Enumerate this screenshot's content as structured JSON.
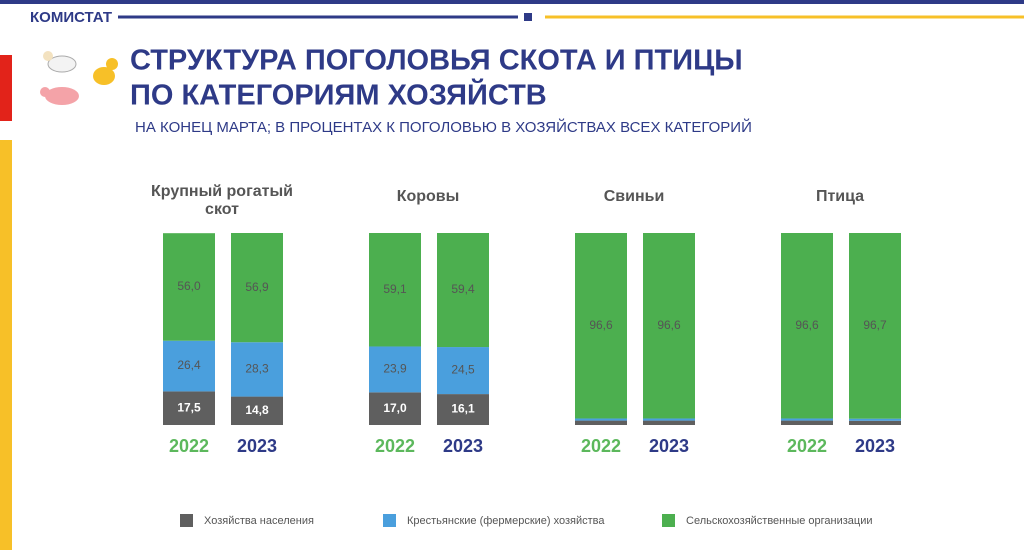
{
  "header": {
    "brand": "КОМИСТАТ"
  },
  "chart_data": {
    "type": "stacked_bar",
    "title": [
      "СТРУКТУРА ПОГОЛОВЬЯ СКОТА И ПТИЦЫ",
      "ПО КАТЕГОРИЯМ ХОЗЯЙСТВ"
    ],
    "subtitle": "НА КОНЕЦ МАРТА;  В ПРОЦЕНТАХ  К ПОГОЛОВЬЮ  В ХОЗЯЙСТВАХ  ВСЕХ КАТЕГОРИЙ",
    "groups": [
      "Крупный рогатый скот",
      "Коровы",
      "Свиньи",
      "Птица"
    ],
    "categories": [
      "2022",
      "2023"
    ],
    "category_colors": [
      "#5cb85c",
      "#2e3a87"
    ],
    "series": [
      {
        "name": "Хозяйства населения",
        "color": "#5f5f5f",
        "values": [
          [
            17.5,
            14.8
          ],
          [
            17.0,
            16.1
          ],
          [
            2.3,
            2.3
          ],
          [
            2.3,
            2.2
          ]
        ],
        "value_labels": [
          [
            "17,5",
            "14,8"
          ],
          [
            "17,0",
            "16,1"
          ],
          [
            null,
            null
          ],
          [
            null,
            null
          ]
        ]
      },
      {
        "name": "Крестьянские (фермерские) хозяйства",
        "color": "#4a9fdd",
        "values": [
          [
            26.4,
            28.3
          ],
          [
            23.9,
            24.5
          ],
          [
            1.1,
            1.1
          ],
          [
            1.1,
            1.1
          ]
        ],
        "value_labels": [
          [
            "26,4",
            "28,3"
          ],
          [
            "23,9",
            "24,5"
          ],
          [
            null,
            null
          ],
          [
            null,
            null
          ]
        ]
      },
      {
        "name": "Сельскохозяйственные организации",
        "color": "#4caf4f",
        "values": [
          [
            56.0,
            56.9
          ],
          [
            59.1,
            59.4
          ],
          [
            96.6,
            96.6
          ],
          [
            96.6,
            96.7
          ]
        ],
        "value_labels": [
          [
            "56,0",
            "56,9"
          ],
          [
            "59,1",
            "59,4"
          ],
          [
            "96,6",
            "96,6"
          ],
          [
            "96,6",
            "96,7"
          ]
        ]
      }
    ]
  }
}
